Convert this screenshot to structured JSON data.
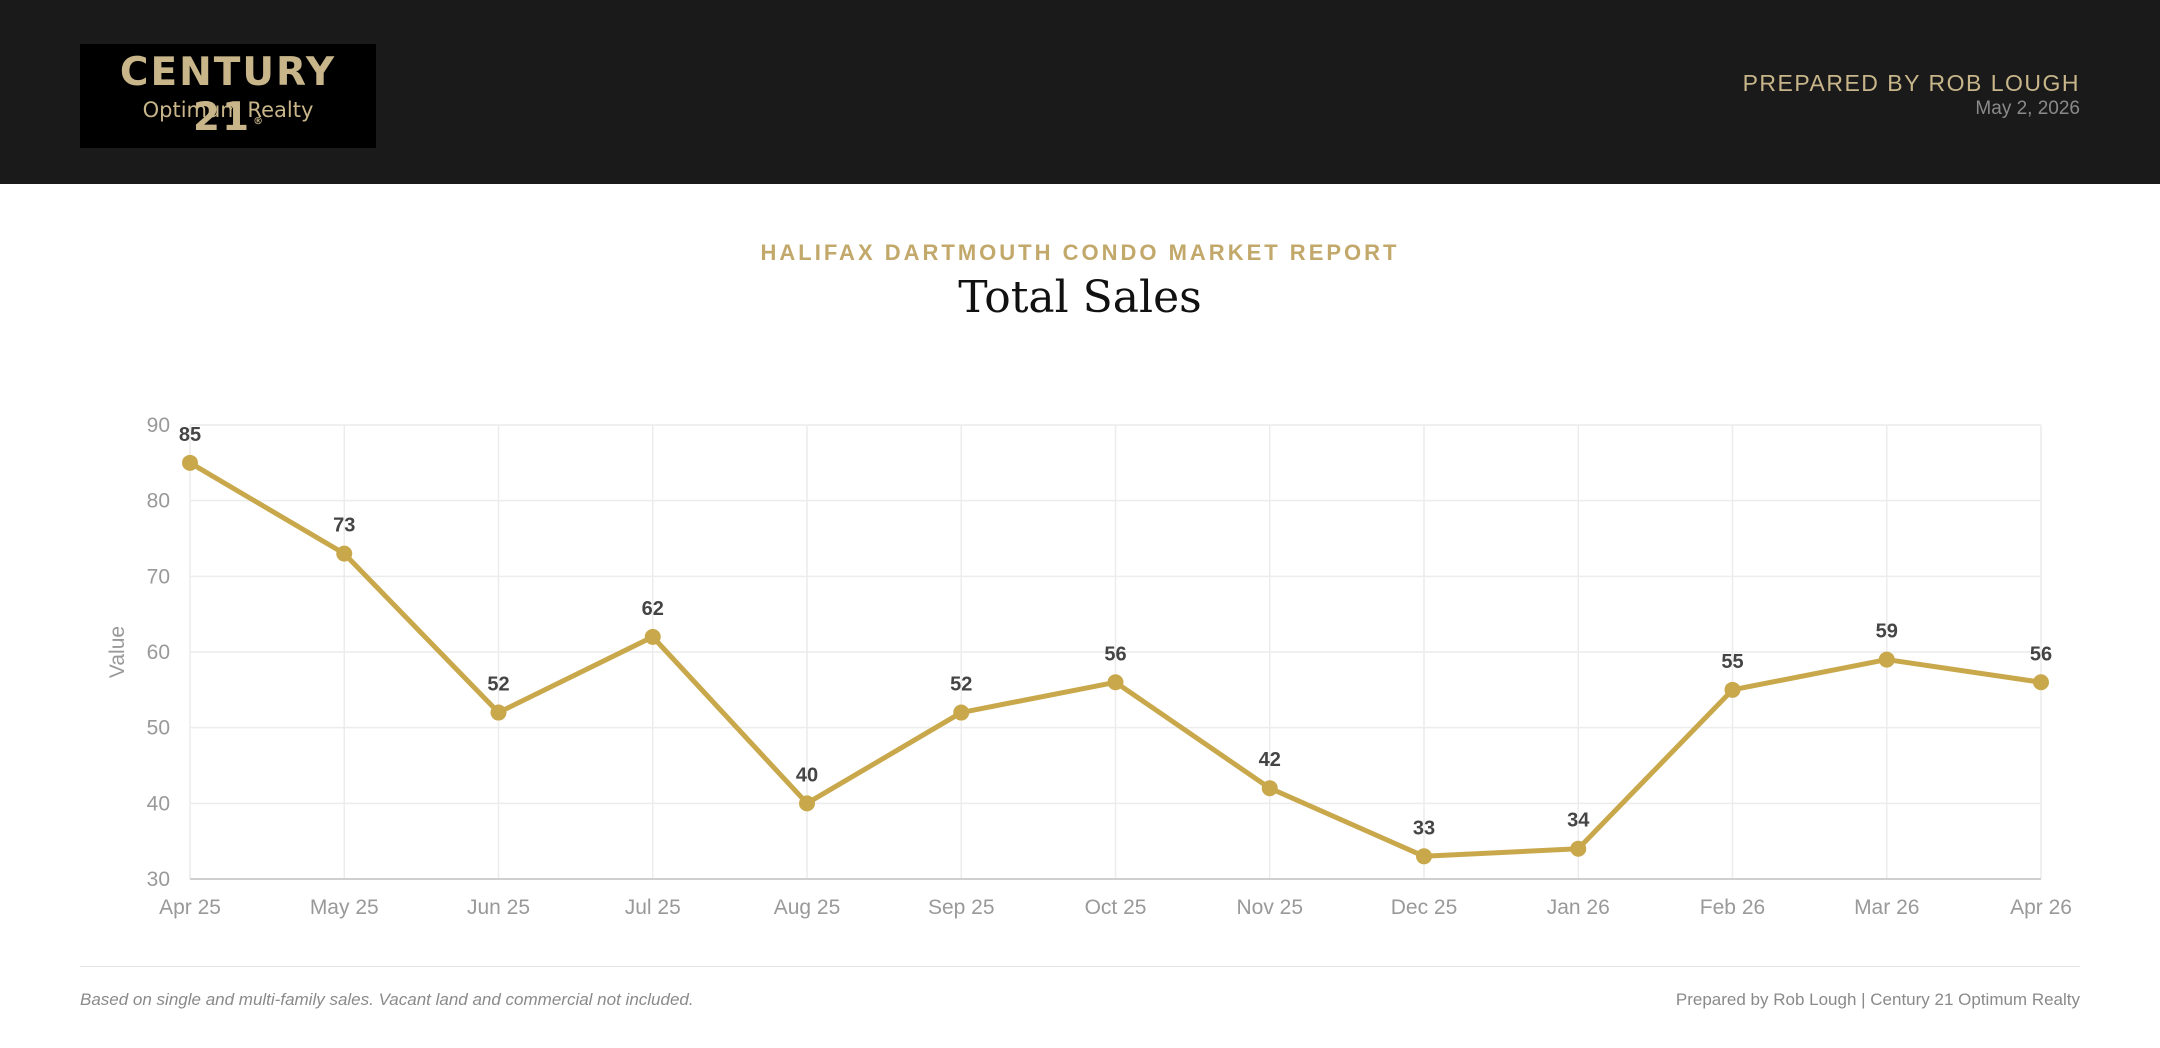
{
  "header": {
    "logo_main": "CENTURY 21",
    "logo_reg": "®",
    "logo_sub": "Optimum Realty",
    "prepared_by": "PREPARED BY ROB LOUGH",
    "date": "May 2, 2026"
  },
  "report": {
    "subtitle": "HALIFAX DARTMOUTH CONDO MARKET REPORT",
    "title": "Total Sales"
  },
  "chart_data": {
    "type": "line",
    "title": "Total Sales",
    "xlabel": "",
    "ylabel": "Value",
    "categories": [
      "Apr 25",
      "May 25",
      "Jun 25",
      "Jul 25",
      "Aug 25",
      "Sep 25",
      "Oct 25",
      "Nov 25",
      "Dec 25",
      "Jan 26",
      "Feb 26",
      "Mar 26",
      "Apr 26"
    ],
    "series": [
      {
        "values": [
          85,
          73,
          52,
          62,
          40,
          52,
          56,
          42,
          33,
          34,
          55,
          59,
          56
        ]
      }
    ],
    "ylim": [
      30,
      90
    ],
    "yticks": [
      30,
      40,
      50,
      60,
      70,
      80,
      90
    ],
    "grid": true,
    "data_labels": true,
    "line_color": "#c9a84c",
    "grid_color": "#ececec",
    "axis_color": "#999999"
  },
  "footer": {
    "note": "Based on single and multi-family sales. Vacant land and commercial not included.",
    "credit": "Prepared by Rob Lough | Century 21 Optimum Realty"
  }
}
